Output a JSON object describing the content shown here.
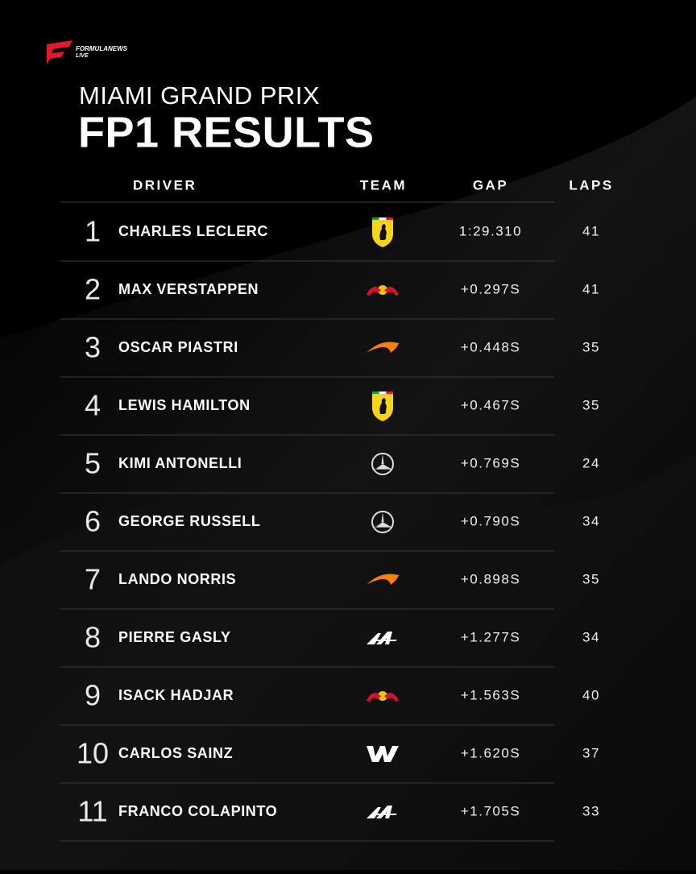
{
  "brand": {
    "line1": "FORMULANEWS",
    "line2": "LIVE"
  },
  "header": {
    "subtitle": "MIAMI GRAND PRIX",
    "title": "FP1 RESULTS"
  },
  "table": {
    "columns": [
      "DRIVER",
      "TEAM",
      "GAP",
      "LAPS"
    ],
    "rows": [
      [
        1,
        "CHARLES LECLERC",
        "1:29.310",
        41
      ],
      [
        2,
        "MAX VERSTAPPEN",
        "+0.297S",
        41
      ],
      [
        3,
        "OSCAR PIASTRI",
        "+0.448S",
        35
      ],
      [
        4,
        "LEWIS HAMILTON",
        "+0.467S",
        35
      ],
      [
        5,
        "KIMI ANTONELLI",
        "+0.769S",
        24
      ],
      [
        6,
        "GEORGE RUSSELL",
        "+0.790S",
        34
      ],
      [
        7,
        "LANDO NORRIS",
        "+0.898S",
        35
      ],
      [
        8,
        "PIERRE GASLY",
        "+1.277S",
        34
      ],
      [
        9,
        "ISACK HADJAR",
        "+1.563S",
        40
      ],
      [
        10,
        "CARLOS SAINZ",
        "+1.620S",
        37
      ],
      [
        11,
        "FRANCO COLAPINTO",
        "+1.705S",
        33
      ]
    ]
  }
}
